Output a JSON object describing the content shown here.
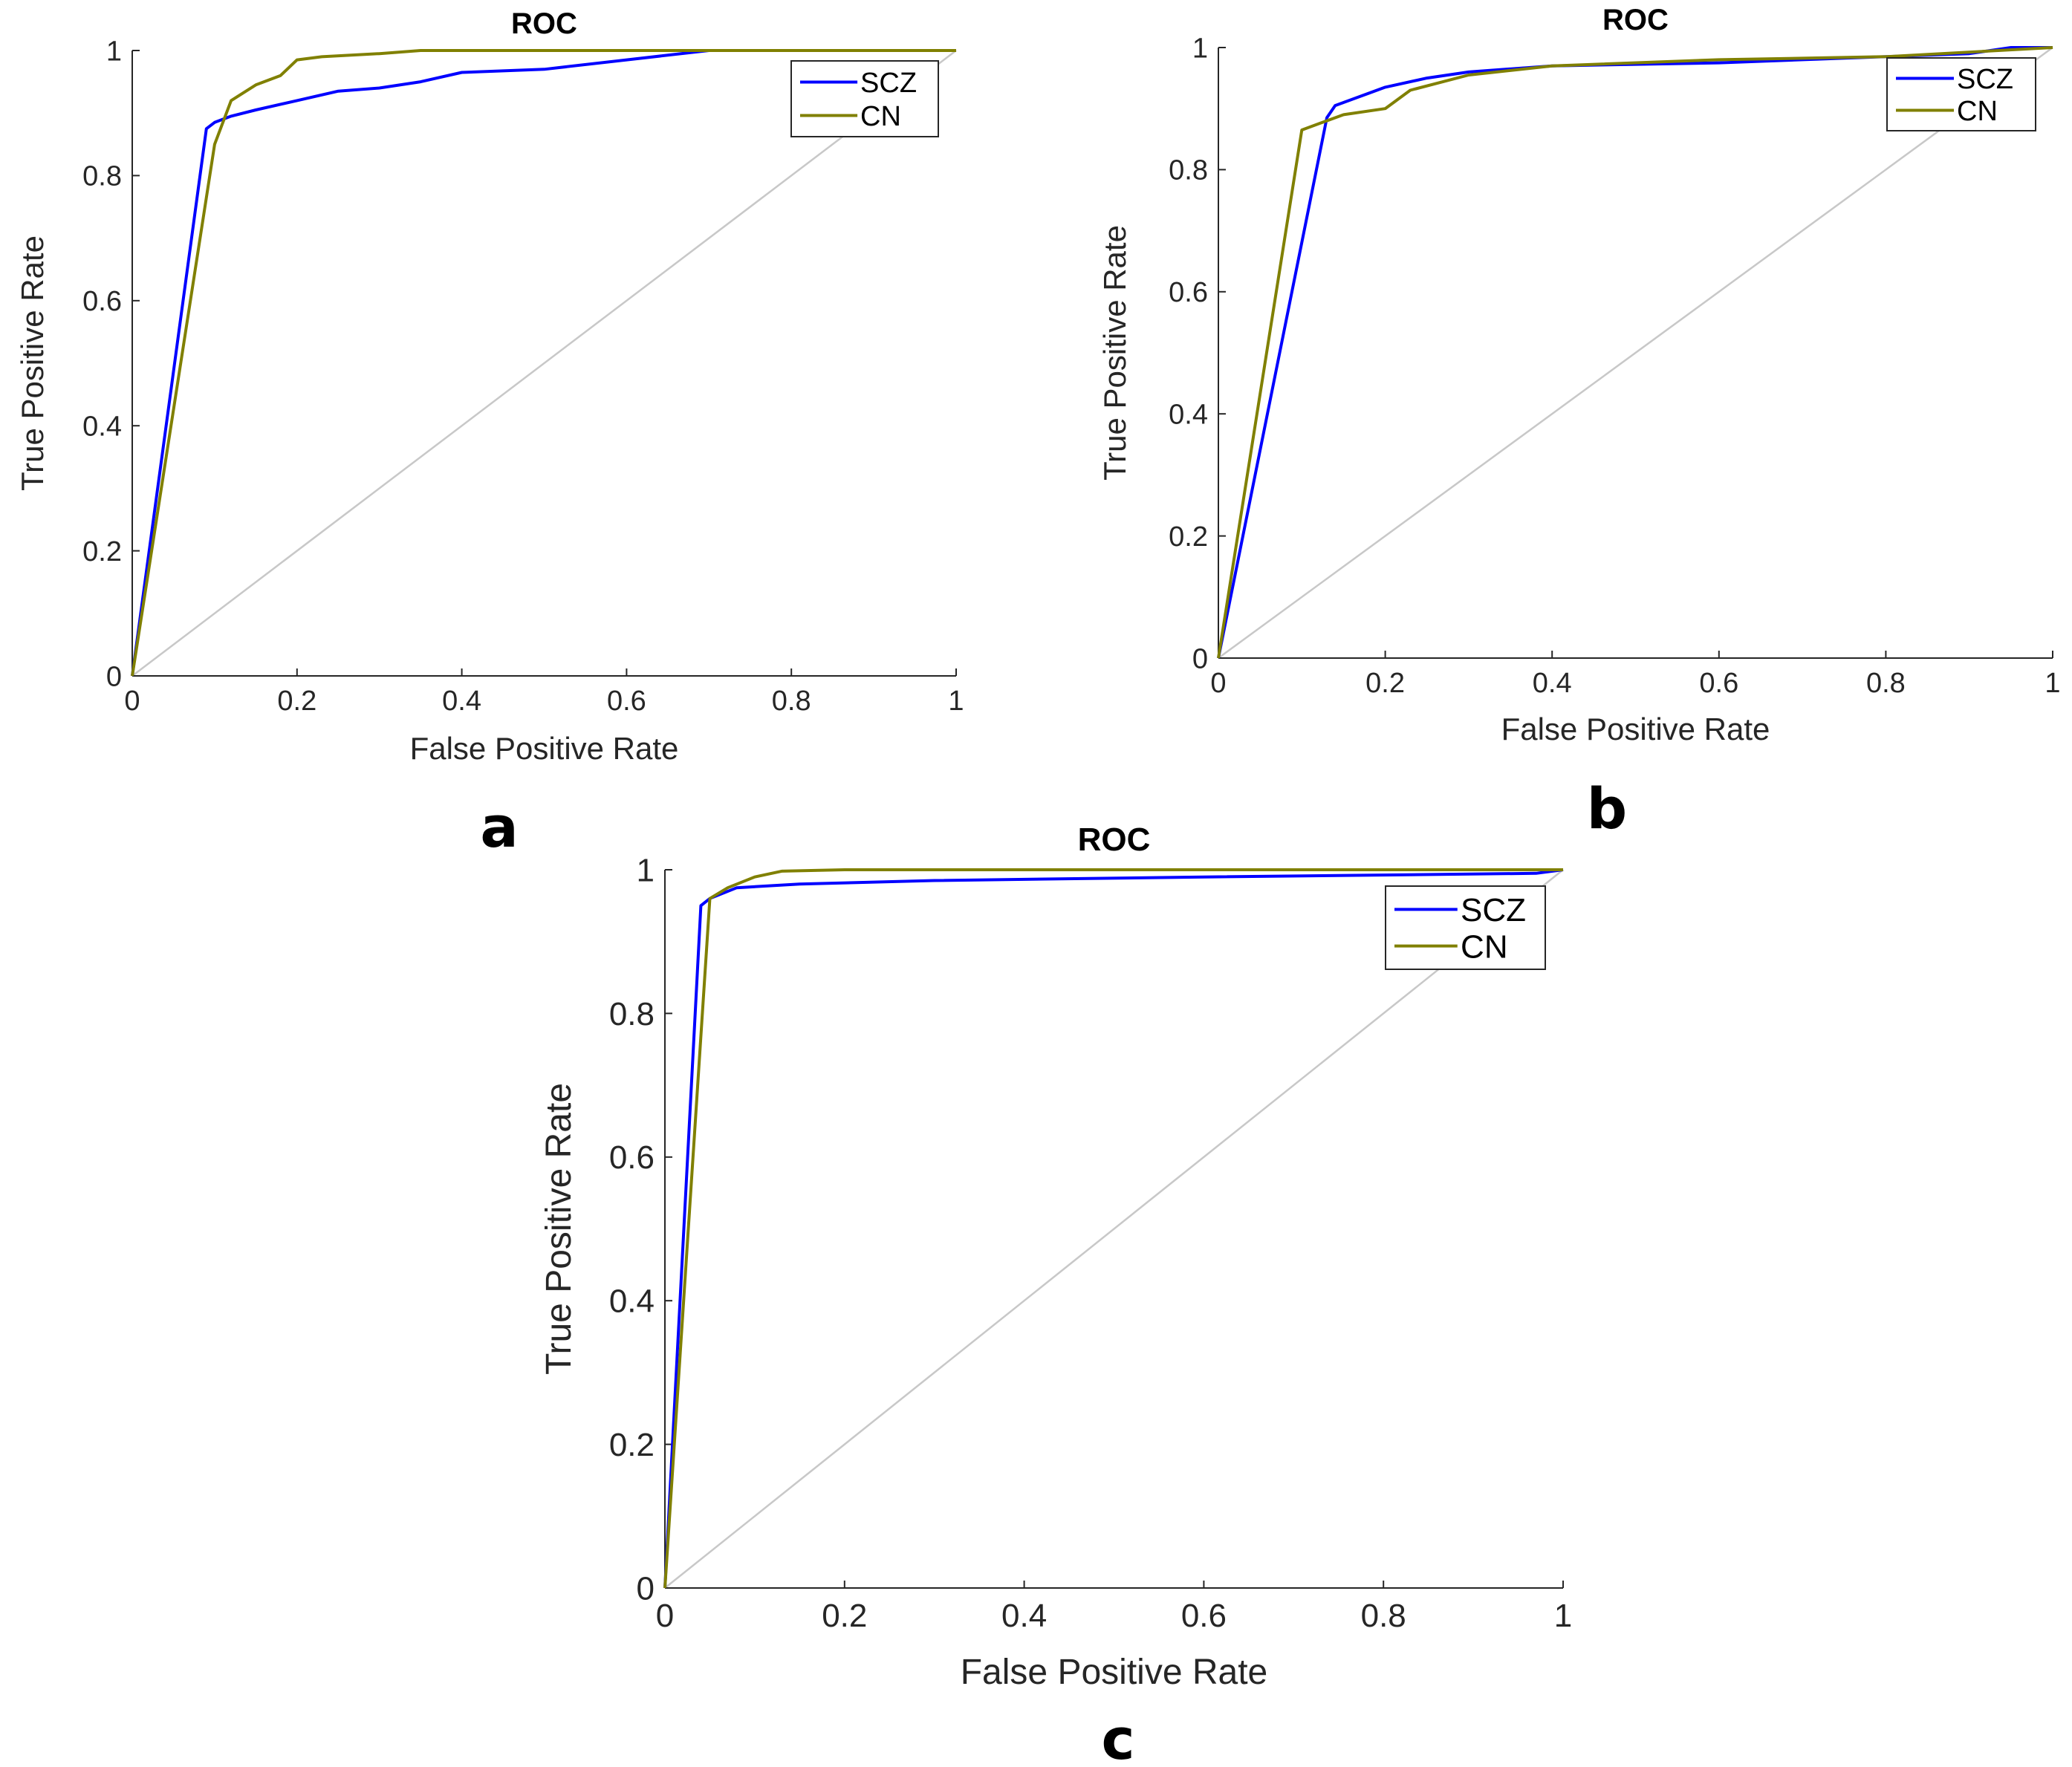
{
  "figure": {
    "panel_labels": [
      "a",
      "b",
      "c"
    ]
  },
  "colors": {
    "scz": "#0000ff",
    "cn": "#808000",
    "diagonal": "#c8c8c8",
    "axis": "#262626"
  },
  "chart_data": [
    {
      "type": "line",
      "panel": "a",
      "title": "ROC",
      "xlabel": "False Positive Rate",
      "ylabel": "True Positive Rate",
      "xlim": [
        0,
        1
      ],
      "ylim": [
        0,
        1
      ],
      "xticks": [
        "0",
        "0.2",
        "0.4",
        "0.6",
        "0.8",
        "1"
      ],
      "yticks": [
        "0",
        "0.2",
        "0.4",
        "0.6",
        "0.8",
        "1"
      ],
      "legend": {
        "location": "top-right",
        "entries": [
          "SCZ",
          "CN"
        ]
      },
      "reference_line": [
        [
          0,
          0
        ],
        [
          1,
          1
        ]
      ],
      "series": [
        {
          "name": "SCZ",
          "color_key": "scz",
          "points": [
            [
              0,
              0
            ],
            [
              0.09,
              0.875
            ],
            [
              0.1,
              0.885
            ],
            [
              0.12,
              0.895
            ],
            [
              0.15,
              0.905
            ],
            [
              0.2,
              0.92
            ],
            [
              0.25,
              0.935
            ],
            [
              0.3,
              0.94
            ],
            [
              0.35,
              0.95
            ],
            [
              0.4,
              0.965
            ],
            [
              0.5,
              0.97
            ],
            [
              0.6,
              0.985
            ],
            [
              0.7,
              1.0
            ],
            [
              1,
              1
            ]
          ]
        },
        {
          "name": "CN",
          "color_key": "cn",
          "points": [
            [
              0,
              0
            ],
            [
              0.1,
              0.85
            ],
            [
              0.12,
              0.92
            ],
            [
              0.15,
              0.945
            ],
            [
              0.18,
              0.96
            ],
            [
              0.2,
              0.985
            ],
            [
              0.23,
              0.99
            ],
            [
              0.3,
              0.995
            ],
            [
              0.35,
              1.0
            ],
            [
              1,
              1
            ]
          ]
        }
      ]
    },
    {
      "type": "line",
      "panel": "b",
      "title": "ROC",
      "xlabel": "False Positive Rate",
      "ylabel": "True Positive Rate",
      "xlim": [
        0,
        1
      ],
      "ylim": [
        0,
        1
      ],
      "xticks": [
        "0",
        "0.2",
        "0.4",
        "0.6",
        "0.8",
        "1"
      ],
      "yticks": [
        "0",
        "0.2",
        "0.4",
        "0.6",
        "0.8",
        "1"
      ],
      "legend": {
        "location": "top-right",
        "entries": [
          "SCZ",
          "CN"
        ]
      },
      "reference_line": [
        [
          0,
          0
        ],
        [
          1,
          1
        ]
      ],
      "series": [
        {
          "name": "SCZ",
          "color_key": "scz",
          "points": [
            [
              0,
              0
            ],
            [
              0.13,
              0.885
            ],
            [
              0.14,
              0.905
            ],
            [
              0.17,
              0.92
            ],
            [
              0.2,
              0.935
            ],
            [
              0.25,
              0.95
            ],
            [
              0.3,
              0.96
            ],
            [
              0.4,
              0.97
            ],
            [
              0.6,
              0.975
            ],
            [
              0.8,
              0.985
            ],
            [
              0.9,
              0.99
            ],
            [
              0.95,
              1.0
            ],
            [
              1,
              1
            ]
          ]
        },
        {
          "name": "CN",
          "color_key": "cn",
          "points": [
            [
              0,
              0
            ],
            [
              0.1,
              0.865
            ],
            [
              0.13,
              0.88
            ],
            [
              0.15,
              0.89
            ],
            [
              0.2,
              0.9
            ],
            [
              0.23,
              0.93
            ],
            [
              0.3,
              0.955
            ],
            [
              0.4,
              0.97
            ],
            [
              0.6,
              0.98
            ],
            [
              0.8,
              0.985
            ],
            [
              1,
              1
            ]
          ]
        }
      ]
    },
    {
      "type": "line",
      "panel": "c",
      "title": "ROC",
      "xlabel": "False Positive Rate",
      "ylabel": "True Positive Rate",
      "xlim": [
        0,
        1
      ],
      "ylim": [
        0,
        1
      ],
      "xticks": [
        "0",
        "0.2",
        "0.4",
        "0.6",
        "0.8",
        "1"
      ],
      "yticks": [
        "0",
        "0.2",
        "0.4",
        "0.6",
        "0.8",
        "1"
      ],
      "legend": {
        "location": "top-right",
        "entries": [
          "SCZ",
          "CN"
        ]
      },
      "reference_line": [
        [
          0,
          0
        ],
        [
          1,
          1
        ]
      ],
      "series": [
        {
          "name": "SCZ",
          "color_key": "scz",
          "points": [
            [
              0,
              0
            ],
            [
              0.04,
              0.95
            ],
            [
              0.05,
              0.96
            ],
            [
              0.08,
              0.975
            ],
            [
              0.15,
              0.98
            ],
            [
              0.3,
              0.985
            ],
            [
              0.6,
              0.99
            ],
            [
              0.97,
              0.995
            ],
            [
              1,
              1
            ]
          ]
        },
        {
          "name": "CN",
          "color_key": "cn",
          "points": [
            [
              0,
              0
            ],
            [
              0.05,
              0.96
            ],
            [
              0.07,
              0.975
            ],
            [
              0.1,
              0.99
            ],
            [
              0.13,
              0.998
            ],
            [
              0.2,
              1.0
            ],
            [
              1,
              1
            ]
          ]
        }
      ]
    }
  ]
}
